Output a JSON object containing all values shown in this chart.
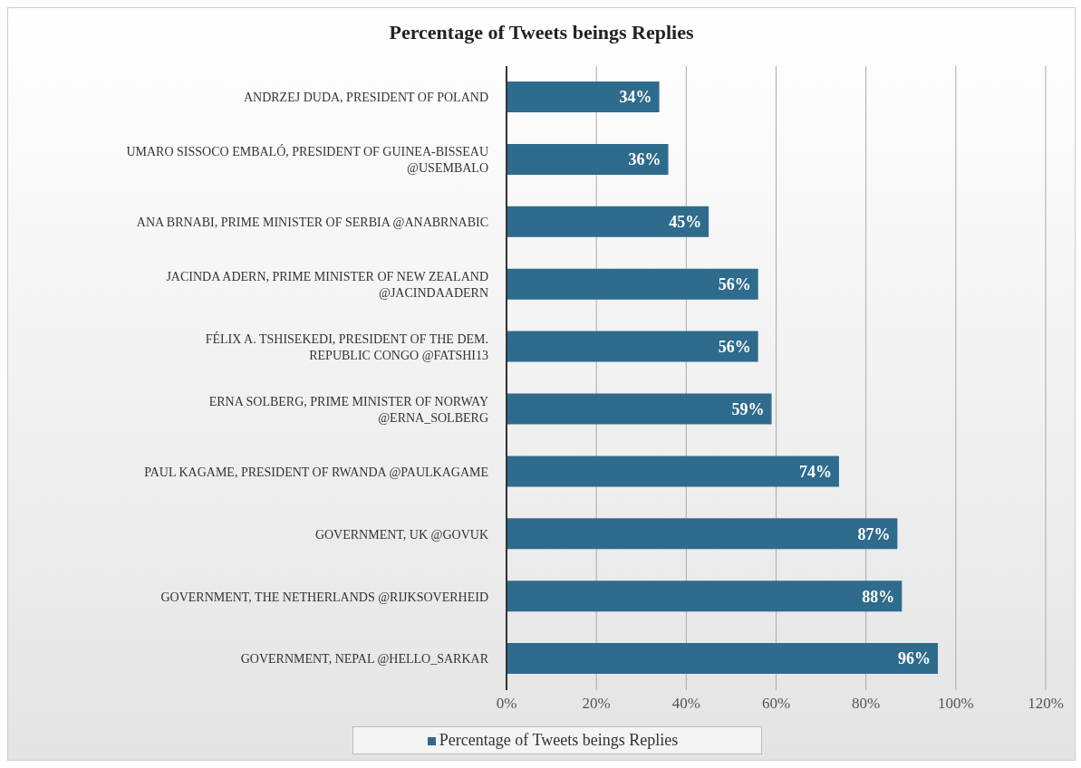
{
  "chart_data": {
    "type": "bar",
    "orientation": "horizontal",
    "title": "Percentage of Tweets beings Replies",
    "categories": [
      "ANDRZEJ DUDA, PRESIDENT OF POLAND",
      "UMARO SISSOCO EMBALÓ, PRESIDENT OF GUINEA-BISSEAU @USEMBALO",
      "ANA BRNABI, PRIME MINISTER OF SERBIA @ANABRNABIC",
      "JACINDA ADERN, PRIME MINISTER OF NEW ZEALAND @JACINDAADERN",
      "FÉLIX A. TSHISEKEDI, PRESIDENT OF THE DEM. REPUBLIC CONGO @FATSHI13",
      "ERNA SOLBERG, PRIME MINISTER OF NORWAY @ERNA_SOLBERG",
      "PAUL KAGAME, PRESIDENT OF RWANDA @PAULKAGAME",
      "GOVERNMENT, UK @GOVUK",
      "GOVERNMENT, THE NETHERLANDS @RIJKSOVERHEID",
      "GOVERNMENT, NEPAL @HELLO_SARKAR"
    ],
    "series": [
      {
        "name": "Percentage of Tweets beings Replies",
        "color": "#2e6b8c",
        "values": [
          34,
          36,
          45,
          56,
          56,
          59,
          74,
          87,
          88,
          96
        ],
        "value_labels": [
          "34%",
          "36%",
          "45%",
          "56%",
          "56%",
          "59%",
          "74%",
          "87%",
          "88%",
          "96%"
        ]
      }
    ],
    "xlim": [
      0,
      120
    ],
    "xticks": [
      {
        "value": 0,
        "label": "0%"
      },
      {
        "value": 20,
        "label": "20%"
      },
      {
        "value": 40,
        "label": "40%"
      },
      {
        "value": 60,
        "label": "60%"
      },
      {
        "value": 80,
        "label": "80%"
      },
      {
        "value": 100,
        "label": "100%"
      },
      {
        "value": 120,
        "label": "120%"
      }
    ],
    "grid": "x",
    "legend": "bottom"
  }
}
